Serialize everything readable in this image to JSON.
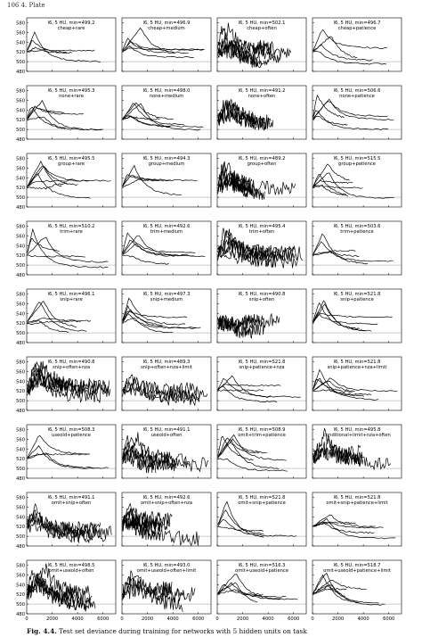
{
  "page_header": "106    4. Plate",
  "caption": {
    "label": "Fig. 4.4.",
    "text": "Test set deviance during training for networks with 5 hidden units on task"
  },
  "chart_data": {
    "type": "line",
    "grid_rows": 9,
    "grid_cols": 4,
    "ylim": [
      480,
      590
    ],
    "yticks": [
      480,
      500,
      520,
      540,
      560,
      580
    ],
    "xlim": [
      0,
      7000
    ],
    "xticks": [
      0,
      2000,
      4000,
      6000
    ],
    "reference_line": 500,
    "panels": [
      {
        "title": "l6, 5 HU, min=499.2",
        "subtitle": "cheap+rare"
      },
      {
        "title": "l6, 5 HU, min=496.9",
        "subtitle": "cheap+medium"
      },
      {
        "title": "l6, 5 HU, min=502.1",
        "subtitle": "cheap+often"
      },
      {
        "title": "l6, 5 HU, min=496.7",
        "subtitle": "cheap+patience"
      },
      {
        "title": "l6, 5 HU, min=495.3",
        "subtitle": "none+rare"
      },
      {
        "title": "l6, 5 HU, min=498.0",
        "subtitle": "none+medium"
      },
      {
        "title": "l6, 5 HU, min=491.2",
        "subtitle": "none+often"
      },
      {
        "title": "l6, 5 HU, min=506.6",
        "subtitle": "none+patience"
      },
      {
        "title": "l6, 5 HU, min=495.5",
        "subtitle": "group+rare"
      },
      {
        "title": "l6, 5 HU, min=494.3",
        "subtitle": "group+medium"
      },
      {
        "title": "l6, 5 HU, min=489.2",
        "subtitle": "group+often"
      },
      {
        "title": "l6, 5 HU, min=515.5",
        "subtitle": "group+patience"
      },
      {
        "title": "l6, 5 HU, min=510.2",
        "subtitle": "trim+rare"
      },
      {
        "title": "l6, 5 HU, min=492.6",
        "subtitle": "trim+medium"
      },
      {
        "title": "l6, 5 HU, min=495.4",
        "subtitle": "trim+often"
      },
      {
        "title": "l6, 5 HU, min=503.6",
        "subtitle": "trim+patience"
      },
      {
        "title": "l6, 5 HU, min=496.1",
        "subtitle": "snip+rare"
      },
      {
        "title": "l6, 5 HU, min=497.3",
        "subtitle": "snip+medium"
      },
      {
        "title": "l6, 5 HU, min=490.8",
        "subtitle": "snip+often"
      },
      {
        "title": "l6, 5 HU, min=521.8",
        "subtitle": "snip+patience"
      },
      {
        "title": "l6, 5 HU, min=490.8",
        "subtitle": "snip+often+nza"
      },
      {
        "title": "l6, 5 HU, min=489.3",
        "subtitle": "snip+often+nza+limit"
      },
      {
        "title": "l6, 5 HU, min=521.8",
        "subtitle": "snip+patience+nza"
      },
      {
        "title": "l6, 5 HU, min=521.8",
        "subtitle": "snip+patience+nza+limit"
      },
      {
        "title": "l6, 5 HU, min=508.3",
        "subtitle": "useold+patience"
      },
      {
        "title": "l6, 5 HU, min=491.1",
        "subtitle": "useold+often"
      },
      {
        "title": "l6, 5 HU, min=508.9",
        "subtitle": "omit+trim+patience"
      },
      {
        "title": "l6, 5 HU, min=495.8",
        "subtitle": "conditional+limit+nza+often"
      },
      {
        "title": "l6, 5 HU, min=491.1",
        "subtitle": "omit+snip+often"
      },
      {
        "title": "l6, 5 HU, min=492.6",
        "subtitle": "omit+snip+often+nza"
      },
      {
        "title": "l6, 5 HU, min=521.8",
        "subtitle": "omit+snip+patience"
      },
      {
        "title": "l6, 5 HU, min=521.8",
        "subtitle": "omit+snip+patience+limit"
      },
      {
        "title": "l6, 5 HU, min=498.5",
        "subtitle": "omit+useold+often"
      },
      {
        "title": "l6, 5 HU, min=493.0",
        "subtitle": "omit+useold+often+limit"
      },
      {
        "title": "l6, 5 HU, min=516.3",
        "subtitle": "omit+useold+patience"
      },
      {
        "title": "l6, 5 HU, min=518.7",
        "subtitle": "omit+useold+patience+limit"
      }
    ]
  }
}
